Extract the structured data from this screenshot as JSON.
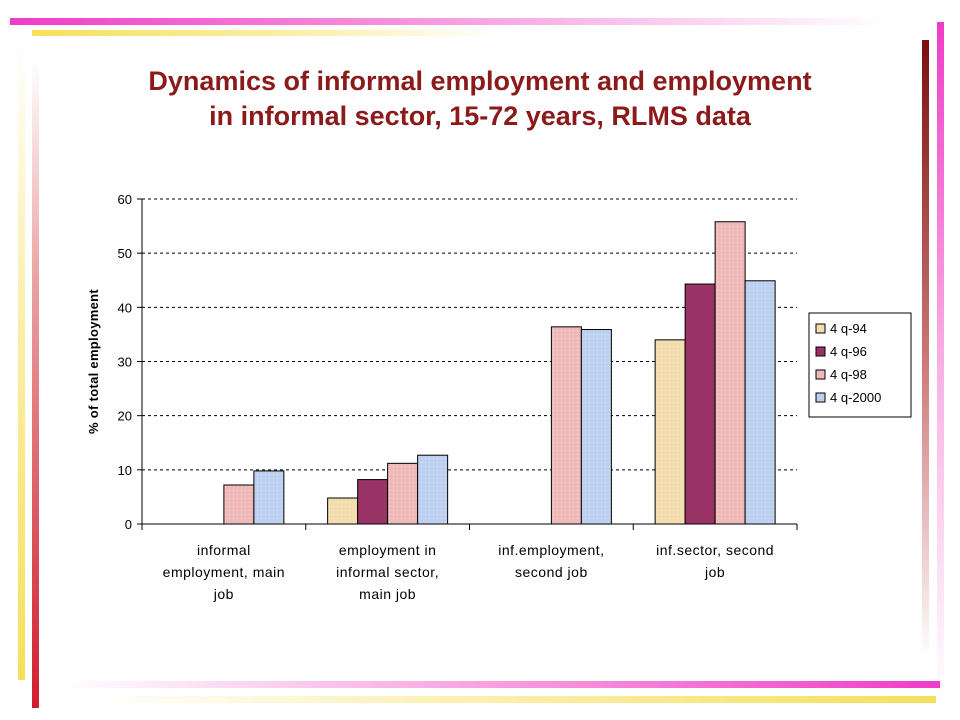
{
  "slide": {
    "title_line1": "Dynamics of informal employment and employment",
    "title_line2": "in informal sector, 15-72 years, RLMS data"
  },
  "colors": {
    "title": "#8b1a1a",
    "stripe_pink": "#f03cc8",
    "stripe_yellow": "#f5e05a",
    "stripe_red": "#d01e2e"
  },
  "chart_data": {
    "type": "bar",
    "title": "",
    "xlabel": "",
    "ylabel": "% of total employment",
    "ylim": [
      0,
      60
    ],
    "yticks": [
      0,
      10,
      20,
      30,
      40,
      50,
      60
    ],
    "grid": true,
    "legend_position": "right",
    "categories": [
      [
        "informal",
        "employment, main",
        "job"
      ],
      [
        "employment in",
        "informal sector,",
        "main job"
      ],
      [
        "inf.employment,",
        "second job"
      ],
      [
        "inf.sector, second",
        "job"
      ]
    ],
    "series": [
      {
        "name": "4 q-94",
        "color": "#f3dcae",
        "values": [
          null,
          4.8,
          null,
          34.0
        ]
      },
      {
        "name": "4 q-96",
        "color": "#993366",
        "values": [
          null,
          8.2,
          null,
          44.3
        ]
      },
      {
        "name": "4 q-98",
        "color": "#efb9b9",
        "values": [
          7.2,
          11.2,
          36.4,
          55.8
        ]
      },
      {
        "name": "4 q-2000",
        "color": "#bdd0f0",
        "values": [
          9.8,
          12.7,
          35.9,
          44.9
        ]
      }
    ]
  }
}
